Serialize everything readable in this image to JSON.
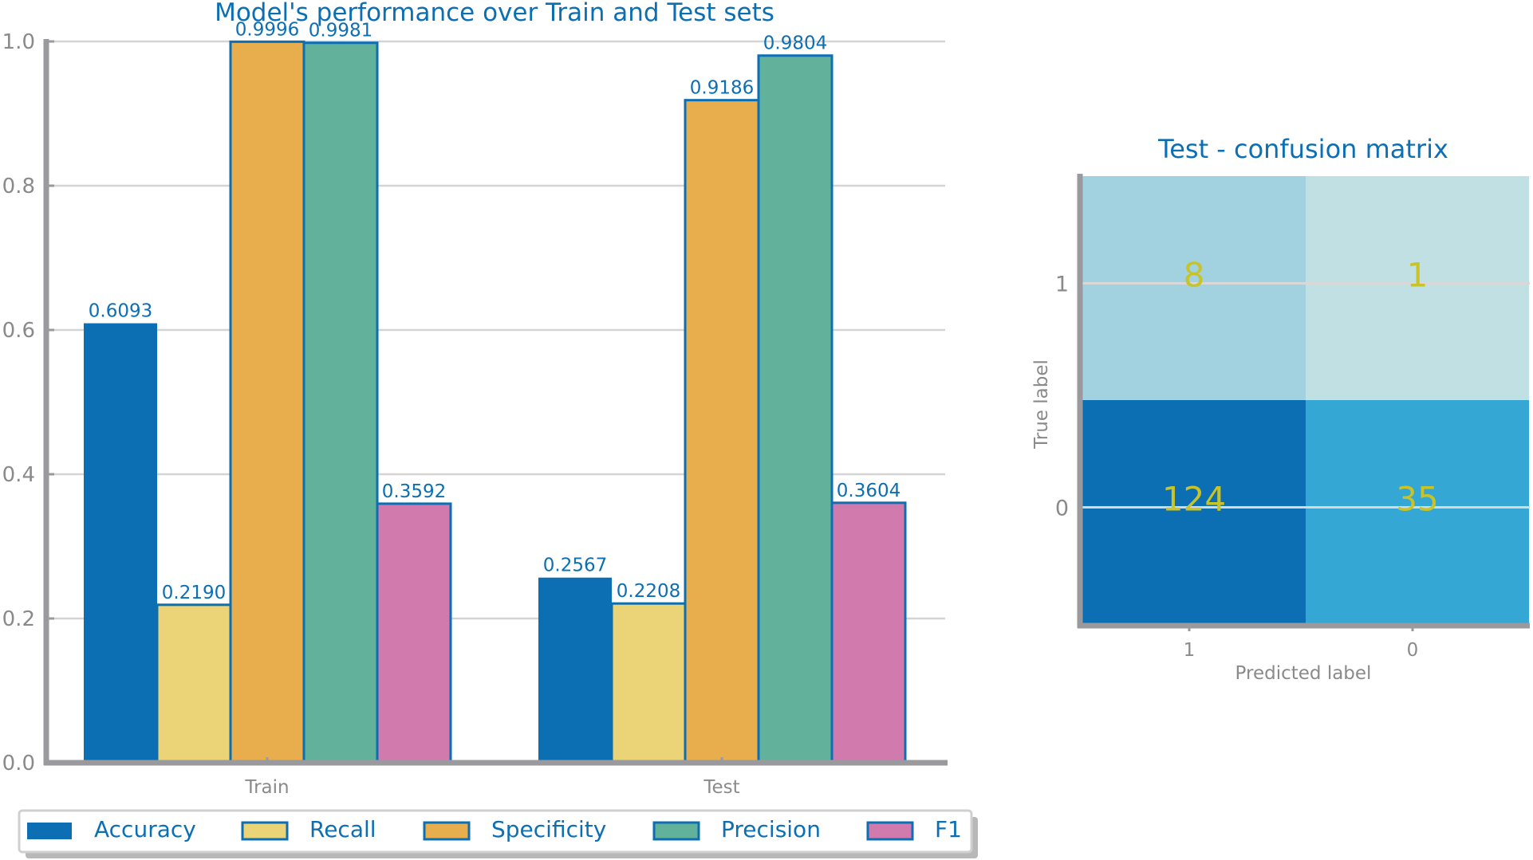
{
  "chart_data": [
    {
      "type": "bar",
      "title": "Model's performance over Train and Test sets",
      "xlabel": "",
      "ylabel": "",
      "categories": [
        "Train",
        "Test"
      ],
      "ylim": [
        0,
        1.0
      ],
      "yticks": [
        "0.0",
        "0.2",
        "0.4",
        "0.6",
        "0.8",
        "1.0"
      ],
      "grid": true,
      "legend_position": "bottom",
      "series": [
        {
          "name": "Accuracy",
          "values": [
            0.6093,
            0.2567
          ],
          "labels": [
            "0.6093",
            "0.2567"
          ],
          "color": "#0d6fb3"
        },
        {
          "name": "Recall",
          "values": [
            0.219,
            0.2208
          ],
          "labels": [
            "0.2190",
            "0.2208"
          ],
          "color": "#ebd377"
        },
        {
          "name": "Specificity",
          "values": [
            0.9996,
            0.9186
          ],
          "labels": [
            "0.9996",
            "0.9186"
          ],
          "color": "#e8ae4e"
        },
        {
          "name": "Precision",
          "values": [
            0.9981,
            0.9804
          ],
          "labels": [
            "0.9981",
            "0.9804"
          ],
          "color": "#62b19b"
        },
        {
          "name": "F1",
          "values": [
            0.3592,
            0.3604
          ],
          "labels": [
            "0.3592",
            "0.3604"
          ],
          "color": "#d17aad"
        }
      ]
    },
    {
      "type": "heatmap",
      "title": "Test - confusion matrix",
      "xlabel": "Predicted label",
      "ylabel": "True label",
      "x_categories": [
        "1",
        "0"
      ],
      "y_categories": [
        "1",
        "0"
      ],
      "values": [
        [
          8,
          1
        ],
        [
          124,
          35
        ]
      ],
      "cell_colors": [
        [
          "#a2d2df",
          "#c0e0e4"
        ],
        [
          "#0d6fb3",
          "#34a7d5"
        ]
      ],
      "value_color": "#c8c326"
    }
  ],
  "colors": {
    "accent": "#0d6fb3",
    "axis": "#9a9a9e",
    "tick_text": "#8a8a8a",
    "grid": "#d4d4d4"
  }
}
